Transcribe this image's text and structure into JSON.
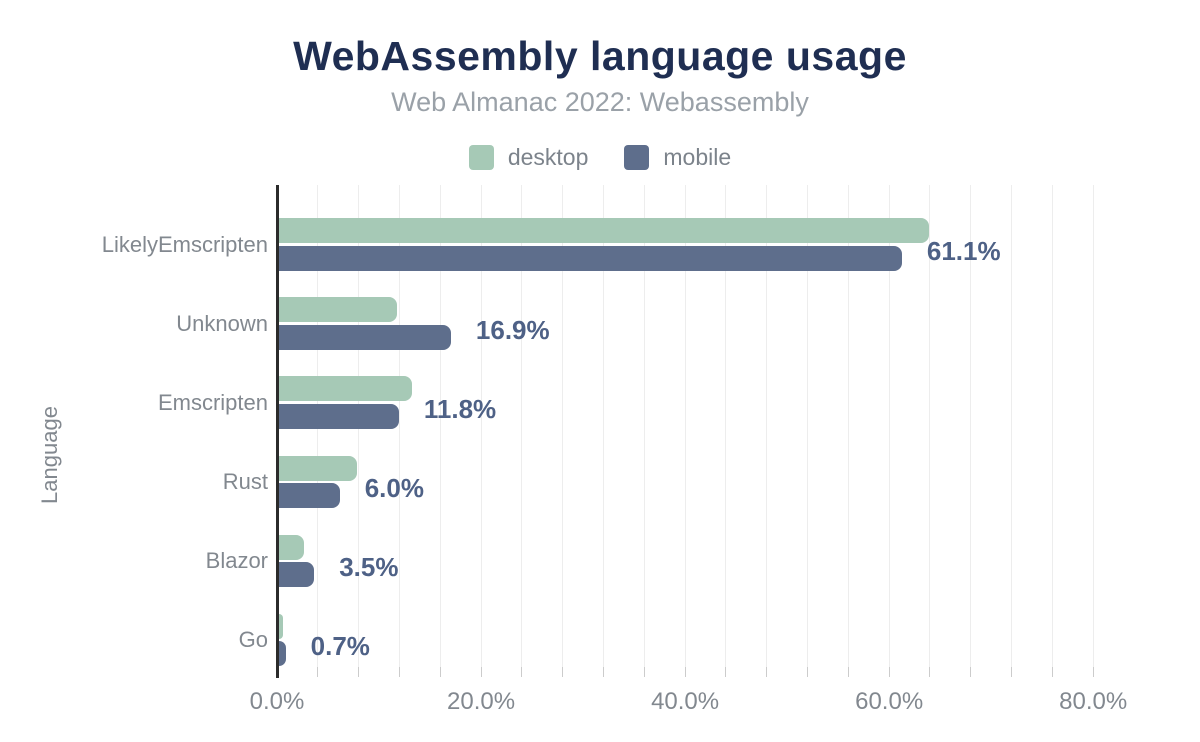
{
  "chart_data": {
    "type": "bar",
    "orientation": "horizontal",
    "title": "WebAssembly language usage",
    "subtitle": "Web Almanac 2022: Webassembly",
    "y_axis_title": "Language",
    "categories": [
      "LikelyEmscripten",
      "Unknown",
      "Emscripten",
      "Rust",
      "Blazor",
      "Go"
    ],
    "series": [
      {
        "name": "desktop",
        "color": "#a6c9b6",
        "values": [
          63.8,
          11.6,
          13.1,
          7.7,
          2.5,
          0.4
        ]
      },
      {
        "name": "mobile",
        "color": "#5e6e8c",
        "values": [
          61.1,
          16.9,
          11.8,
          6.0,
          3.5,
          0.7
        ]
      }
    ],
    "bar_value_labels": {
      "labeled_series": "mobile",
      "labels": [
        "61.1%",
        "16.9%",
        "11.8%",
        "6.0%",
        "3.5%",
        "0.7%"
      ]
    },
    "x_axis": {
      "unit": "%",
      "tick_labels": [
        "0.0%",
        "20.0%",
        "40.0%",
        "60.0%",
        "80.0%"
      ],
      "tick_values": [
        0,
        20,
        40,
        60,
        80
      ],
      "minor_gridline_step": 4,
      "min": 0,
      "max": 84
    },
    "legend_position": "top",
    "grid": true
  },
  "colors": {
    "background": "#ffffff",
    "title": "#1f2e52",
    "subtitle": "#9aa1a8",
    "legend_text": "#7c838b",
    "axis_text": "#82888f",
    "value_label": "#4e6186",
    "gridline": "#ededed",
    "tick": "#cccccc",
    "axis_line": "#2b2b2b",
    "desktop_bar": "#a6c9b6",
    "mobile_bar": "#5e6e8c"
  }
}
